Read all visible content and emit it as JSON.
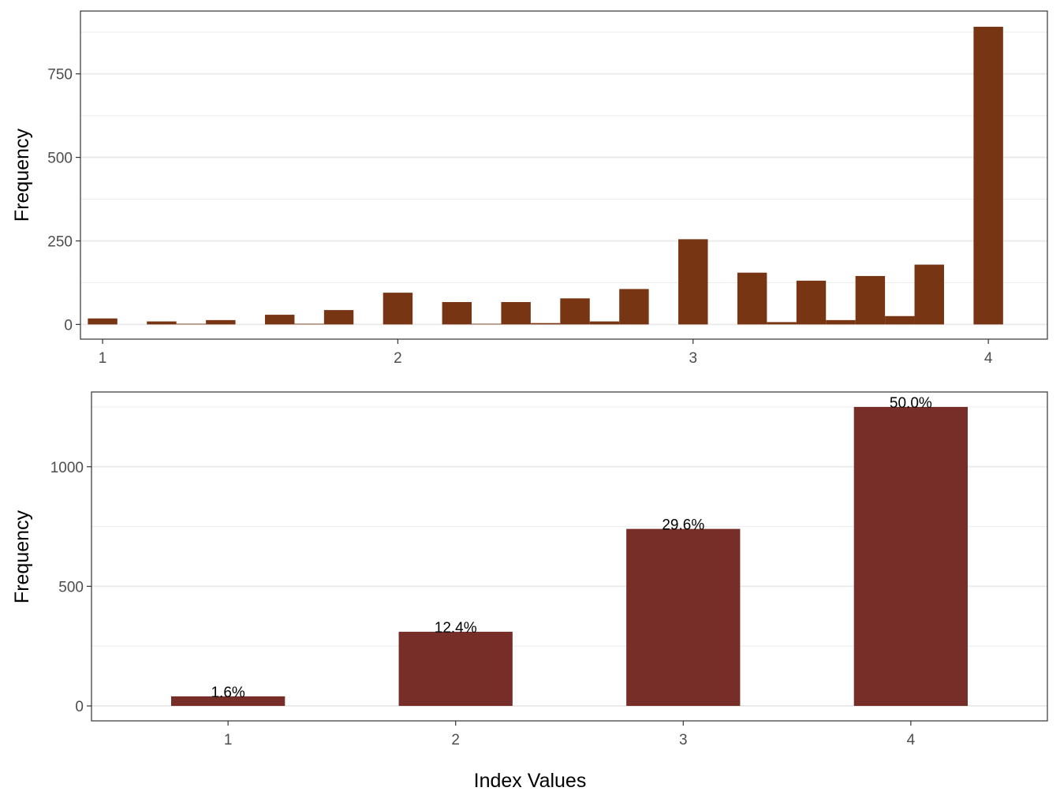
{
  "chart_data": [
    {
      "type": "bar",
      "subtype": "histogram",
      "title": "",
      "xlabel": "",
      "ylabel": "Frequency",
      "x_ticks": [
        1,
        2,
        3,
        4
      ],
      "y_ticks": [
        0,
        250,
        500,
        750
      ],
      "xlim": [
        0.925,
        4.2
      ],
      "ylim": [
        -44,
        938
      ],
      "bin_width": 0.1,
      "bar_color": "#773513",
      "grid": true,
      "bins": [
        {
          "x": 1.0,
          "value": 18
        },
        {
          "x": 1.1,
          "value": 0
        },
        {
          "x": 1.2,
          "value": 9
        },
        {
          "x": 1.3,
          "value": 2
        },
        {
          "x": 1.4,
          "value": 13
        },
        {
          "x": 1.5,
          "value": 0
        },
        {
          "x": 1.6,
          "value": 29
        },
        {
          "x": 1.7,
          "value": 2
        },
        {
          "x": 1.8,
          "value": 43
        },
        {
          "x": 1.9,
          "value": 0
        },
        {
          "x": 2.0,
          "value": 95
        },
        {
          "x": 2.1,
          "value": 0
        },
        {
          "x": 2.2,
          "value": 67
        },
        {
          "x": 2.3,
          "value": 2
        },
        {
          "x": 2.4,
          "value": 67
        },
        {
          "x": 2.5,
          "value": 4
        },
        {
          "x": 2.6,
          "value": 78
        },
        {
          "x": 2.7,
          "value": 9
        },
        {
          "x": 2.8,
          "value": 106
        },
        {
          "x": 2.9,
          "value": 0
        },
        {
          "x": 3.0,
          "value": 255
        },
        {
          "x": 3.1,
          "value": 0
        },
        {
          "x": 3.2,
          "value": 155
        },
        {
          "x": 3.3,
          "value": 7
        },
        {
          "x": 3.4,
          "value": 131
        },
        {
          "x": 3.5,
          "value": 13
        },
        {
          "x": 3.6,
          "value": 145
        },
        {
          "x": 3.7,
          "value": 25
        },
        {
          "x": 3.8,
          "value": 179
        },
        {
          "x": 3.9,
          "value": 0
        },
        {
          "x": 4.0,
          "value": 891
        }
      ]
    },
    {
      "type": "bar",
      "title": "",
      "xlabel": "Index Values",
      "ylabel": "Frequency",
      "categories": [
        "1",
        "2",
        "3",
        "4"
      ],
      "values": [
        40,
        310,
        740,
        1250
      ],
      "labels": [
        "1.6%",
        "12.4%",
        "29.6%",
        "50.0%"
      ],
      "y_ticks": [
        0,
        500,
        1000
      ],
      "xlim": [
        0.4,
        4.6
      ],
      "ylim": [
        -62.5,
        1312.5
      ],
      "bar_width": 0.5,
      "bar_color": "#772d28",
      "grid": true
    }
  ]
}
